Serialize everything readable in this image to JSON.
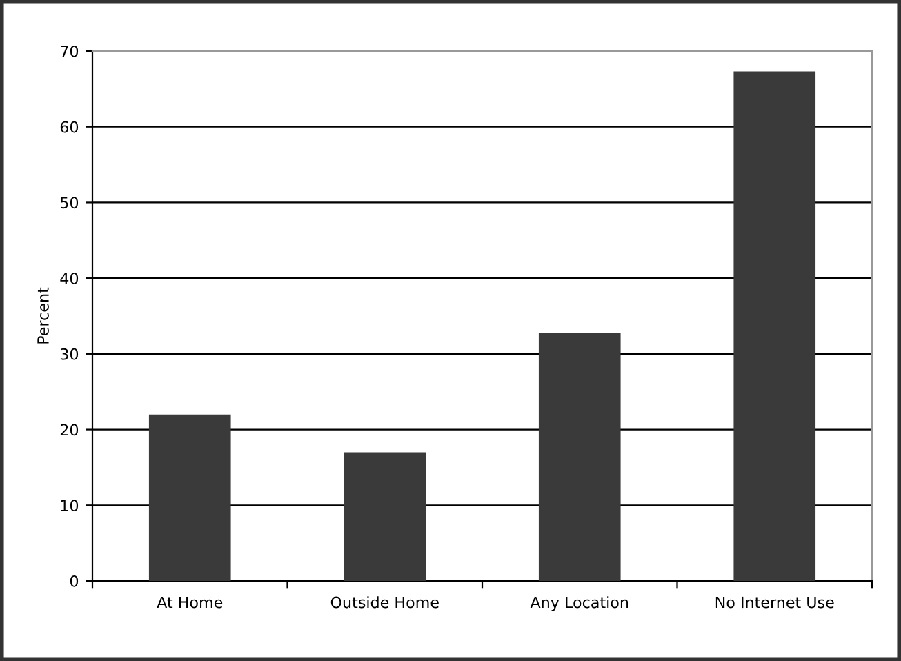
{
  "chart_data": {
    "type": "bar",
    "ylabel": "Percent",
    "categories": [
      "At Home",
      "Outside Home",
      "Any Location",
      "No Internet Use"
    ],
    "values": [
      22,
      17,
      32.8,
      67.3
    ],
    "color": "#3a3a3a",
    "ylim": [
      0,
      70
    ],
    "yticks": [
      0,
      10,
      20,
      30,
      40,
      50,
      60,
      70
    ],
    "grid": "y",
    "legend": false
  }
}
